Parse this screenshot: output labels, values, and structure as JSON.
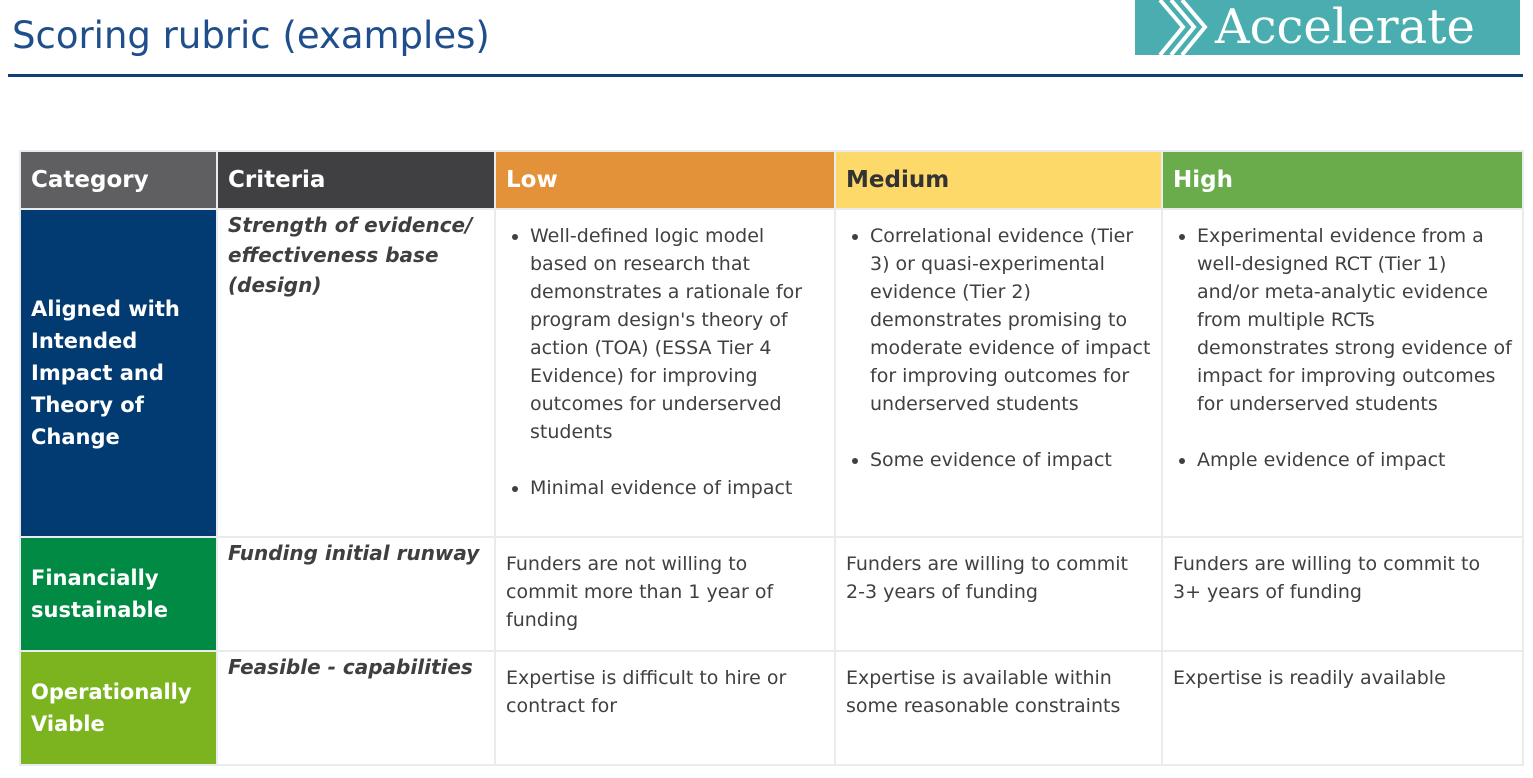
{
  "title": "Scoring rubric (examples)",
  "logo": {
    "text": "Accelerate",
    "color": "#4aaeb0"
  },
  "headers": [
    "Category",
    "Criteria",
    "Low",
    "Medium",
    "High"
  ],
  "colors": {
    "category": "#5f5f61",
    "criteria": "#404042",
    "low": "#e4923a",
    "medium": "#fdd96a",
    "high": "#6aab4c",
    "row1": "#013b71",
    "row2": "#008a43",
    "row3": "#7cb41f"
  },
  "rows": [
    {
      "category": "Aligned with Intended Impact and Theory of Change",
      "criteria": "Strength of evidence/ effectiveness base (design)",
      "low": [
        "Well-defined logic model based on research that demonstrates a rationale for program design's theory of action (TOA) (ESSA Tier 4 Evidence) for improving outcomes for underserved students",
        "Minimal evidence of impact"
      ],
      "medium": [
        "Correlational evidence (Tier 3) or quasi-experimental evidence (Tier 2) demonstrates promising to moderate evidence of impact for improving outcomes for underserved students",
        "Some evidence of impact"
      ],
      "high": [
        "Experimental evidence from a well-designed RCT (Tier 1) and/or meta-analytic evidence from multiple RCTs demonstrates strong evidence of impact for improving outcomes for underserved students",
        "Ample evidence of impact"
      ]
    },
    {
      "category": "Financially sustainable",
      "criteria": "Funding initial runway",
      "low": "Funders are not willing to commit more than 1 year of funding",
      "medium": "Funders are willing to commit 2-3 years of funding",
      "high": "Funders are willing to commit to 3+ years of funding"
    },
    {
      "category": "Operationally Viable",
      "criteria": "Feasible - capabilities",
      "low": "Expertise is difficult to hire or contract for",
      "medium": "Expertise is available within some reasonable constraints",
      "high": "Expertise is readily available"
    }
  ]
}
